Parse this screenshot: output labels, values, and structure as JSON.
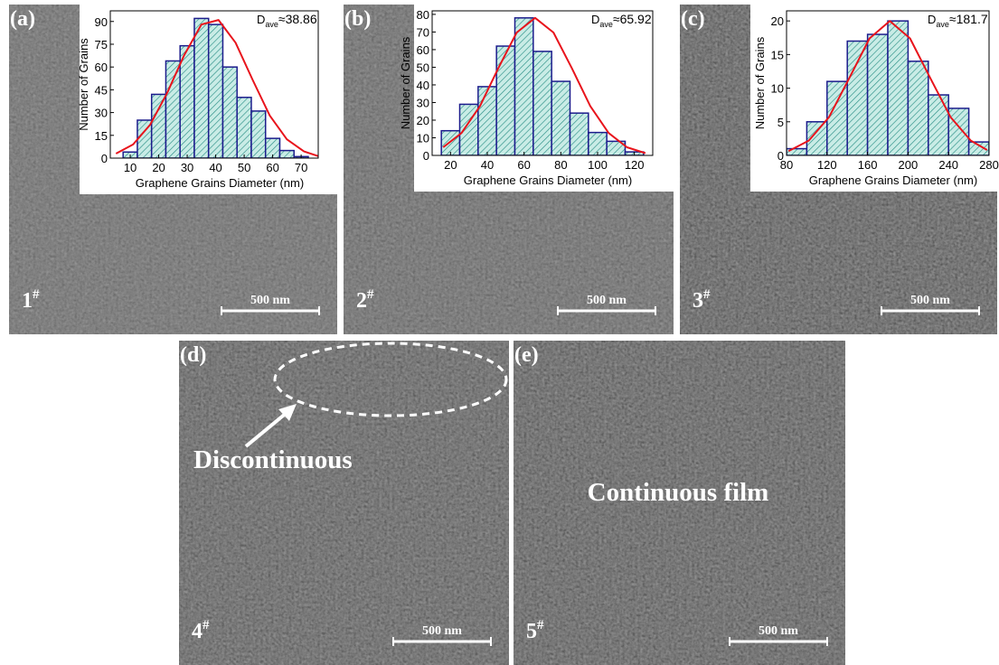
{
  "chart_data": [
    {
      "type": "histogram",
      "x_label": "Graphene Grains Diameter (nm)",
      "y_label": "Number of Grains",
      "annotation": {
        "symbol": "D",
        "subscript": "ave",
        "text": "≈38.86"
      },
      "bins": [
        7.5,
        12.5,
        17.5,
        22.5,
        27.5,
        32.5,
        37.5,
        42.5,
        47.5,
        52.5,
        57.5,
        62.5,
        67.5,
        72.5
      ],
      "values": [
        4,
        25,
        42,
        64,
        74,
        92,
        88,
        60,
        40,
        31,
        13,
        5,
        1
      ],
      "color": "#c9ece6",
      "hatch_color": "#2a8f86",
      "edge_color": "#1c1c8c",
      "xlim": [
        3,
        76
      ],
      "xticks": [
        10,
        20,
        30,
        40,
        50,
        60,
        70
      ],
      "ylim": [
        0,
        97
      ],
      "yticks": [
        0,
        15,
        30,
        45,
        60,
        75,
        90
      ],
      "fit": {
        "color": "#e8141c",
        "x": [
          5,
          11,
          17,
          23,
          29,
          35,
          41,
          47,
          53,
          59,
          65,
          71,
          76
        ],
        "y": [
          3,
          9,
          22,
          43,
          68,
          88,
          91,
          76,
          51.5,
          28,
          12.4,
          4.4,
          1.3
        ]
      }
    },
    {
      "type": "histogram",
      "x_label": "Graphene Grains Diameter (nm)",
      "y_label": "Number of Grains",
      "annotation": {
        "symbol": "D",
        "subscript": "ave",
        "text": "≈65.92"
      },
      "bins": [
        15,
        25,
        35,
        45,
        55,
        65,
        75,
        85,
        95,
        105,
        115,
        125
      ],
      "values": [
        14,
        29,
        39,
        62,
        78,
        59,
        42,
        24,
        13,
        8,
        2
      ],
      "color": "#c9ece6",
      "hatch_color": "#2a8f86",
      "edge_color": "#1c1c8c",
      "xlim": [
        10,
        130
      ],
      "xticks": [
        20,
        40,
        60,
        80,
        100,
        120
      ],
      "ylim": [
        0,
        82
      ],
      "yticks": [
        0,
        10,
        20,
        30,
        40,
        50,
        60,
        70,
        80
      ],
      "fit": {
        "color": "#e8141c",
        "x": [
          16,
          26,
          36,
          46,
          56,
          66,
          76,
          86,
          96,
          106,
          116,
          126
        ],
        "y": [
          4.6,
          12.7,
          28,
          49.5,
          69.7,
          78,
          69.7,
          49.5,
          28,
          12.7,
          4.6,
          1.3
        ]
      }
    },
    {
      "type": "histogram",
      "x_label": "Graphene Grains Diameter (nm)",
      "y_label": "Number of Grains",
      "annotation": {
        "symbol": "D",
        "subscript": "ave",
        "text": "≈181.7"
      },
      "bins": [
        80,
        100,
        120,
        140,
        160,
        180,
        200,
        220,
        240,
        260,
        280
      ],
      "values": [
        1,
        5,
        11,
        17,
        18,
        20,
        14,
        9,
        7,
        2
      ],
      "color": "#c9ece6",
      "hatch_color": "#2a8f86",
      "edge_color": "#1c1c8c",
      "xlim": [
        80,
        280
      ],
      "xticks": [
        80,
        120,
        160,
        200,
        240,
        280
      ],
      "ylim": [
        0,
        21.5
      ],
      "yticks": [
        0,
        5,
        10,
        15,
        20
      ],
      "fit": {
        "color": "#e8141c",
        "x": [
          82,
          102,
          122,
          142,
          162,
          182,
          202,
          222,
          242,
          262,
          278
        ],
        "y": [
          0.63,
          2.2,
          5.7,
          11.5,
          17.4,
          20,
          17.4,
          11.5,
          5.7,
          2.2,
          0.8
        ]
      }
    }
  ],
  "panels": [
    {
      "label": "(a)",
      "sample": {
        "number": "1",
        "mark": "#"
      },
      "scale_bar": "500 nm"
    },
    {
      "label": "(b)",
      "sample": {
        "number": "2",
        "mark": "#"
      },
      "scale_bar": "500 nm"
    },
    {
      "label": "(c)",
      "sample": {
        "number": "3",
        "mark": "#"
      },
      "scale_bar": "500 nm"
    },
    {
      "label": "(d)",
      "sample": {
        "number": "4",
        "mark": "#"
      },
      "scale_bar": "500 nm"
    },
    {
      "label": "(e)",
      "sample": {
        "number": "5",
        "mark": "#"
      },
      "scale_bar": "500 nm"
    }
  ],
  "annotations": {
    "discontinuous": "Discontinuous",
    "continuous": "Continuous film"
  }
}
